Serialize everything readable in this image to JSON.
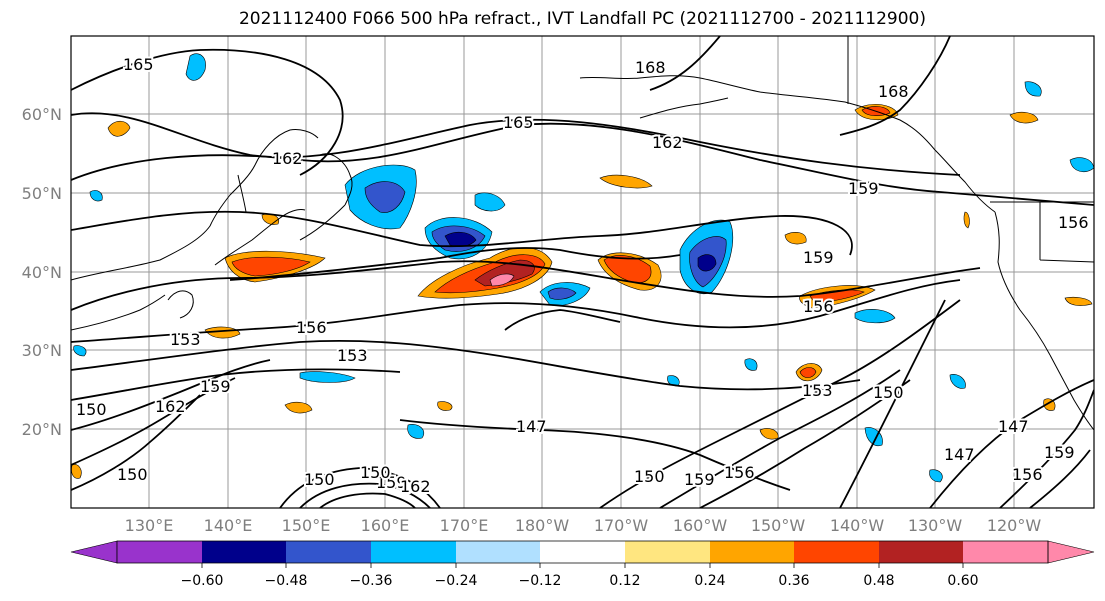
{
  "title": "2021112400 F066 500 hPa refract., IVT Landfall PC (2021112700 - 2021112900)",
  "map": {
    "latitude_labels": [
      "60°N",
      "50°N",
      "40°N",
      "30°N",
      "20°N"
    ],
    "longitude_labels": [
      "130°E",
      "140°E",
      "150°E",
      "160°E",
      "170°E",
      "180°W",
      "170°W",
      "160°W",
      "150°W",
      "140°W",
      "130°W",
      "120°W"
    ],
    "contour_labels": [
      "165",
      "165",
      "168",
      "168",
      "162",
      "162",
      "159",
      "159",
      "156",
      "156",
      "156",
      "153",
      "153",
      "153",
      "150",
      "150",
      "150",
      "150",
      "159",
      "162",
      "147",
      "147",
      "147",
      "150",
      "159",
      "156",
      "156",
      "159",
      "159",
      "162",
      "150"
    ],
    "coastline_color": "#000000",
    "gridline_color": "#999999"
  },
  "colorbar": {
    "tick_labels": [
      "−0.60",
      "−0.48",
      "−0.36",
      "−0.24",
      "−0.12",
      "0.12",
      "0.24",
      "0.36",
      "0.48",
      "0.60"
    ],
    "colors": [
      "#9933cc",
      "#00008b",
      "#3355cc",
      "#00bfff",
      "#b0e0ff",
      "#ffffff",
      "#ffe680",
      "#ffa500",
      "#ff4500",
      "#b22222",
      "#ff88aa"
    ]
  }
}
